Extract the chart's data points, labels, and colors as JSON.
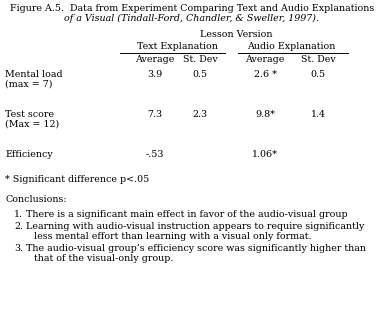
{
  "title_line1": "Figure A.5.  Data from Experiment Comparing Text and Audio Explanations",
  "title_line2": "of a Visual (Tindall-Ford, Chandler, & Sweller, 1997).",
  "lesson_version_label": "Lesson Version",
  "col_header_text": "Text Explanation",
  "col_header_audio": "Audio Explanation",
  "col_avg": "Average",
  "col_std": "St. Dev",
  "rows": [
    {
      "label_line1": "Mental load",
      "label_line2": "(max = 7)",
      "text_avg": "3.9",
      "text_std": "0.5",
      "audio_avg": "2.6 *",
      "audio_std": "0.5"
    },
    {
      "label_line1": "Test score",
      "label_line2": "(Max = 12)",
      "text_avg": "7.3",
      "text_std": "2.3",
      "audio_avg": "9.8*",
      "audio_std": "1.4"
    },
    {
      "label_line1": "Efficiency",
      "label_line2": "",
      "text_avg": "-.53",
      "text_std": "",
      "audio_avg": "1.06*",
      "audio_std": ""
    }
  ],
  "sig_note": "* Significant difference p<.05",
  "conclusions_label": "Conclusions:",
  "conclusion1": "There is a significant main effect in favor of the audio-visual group",
  "conclusion2a": "Learning with audio-visual instruction appears to require significantly",
  "conclusion2b": "less mental effort than learning with a visual only format.",
  "conclusion3a": "The audio-visual group’s efficiency score was significantly higher than",
  "conclusion3b": "that of the visual-only group.",
  "bg_color": "#ffffff",
  "text_color": "#000000",
  "font_size": 6.8,
  "title_font_size": 6.8
}
